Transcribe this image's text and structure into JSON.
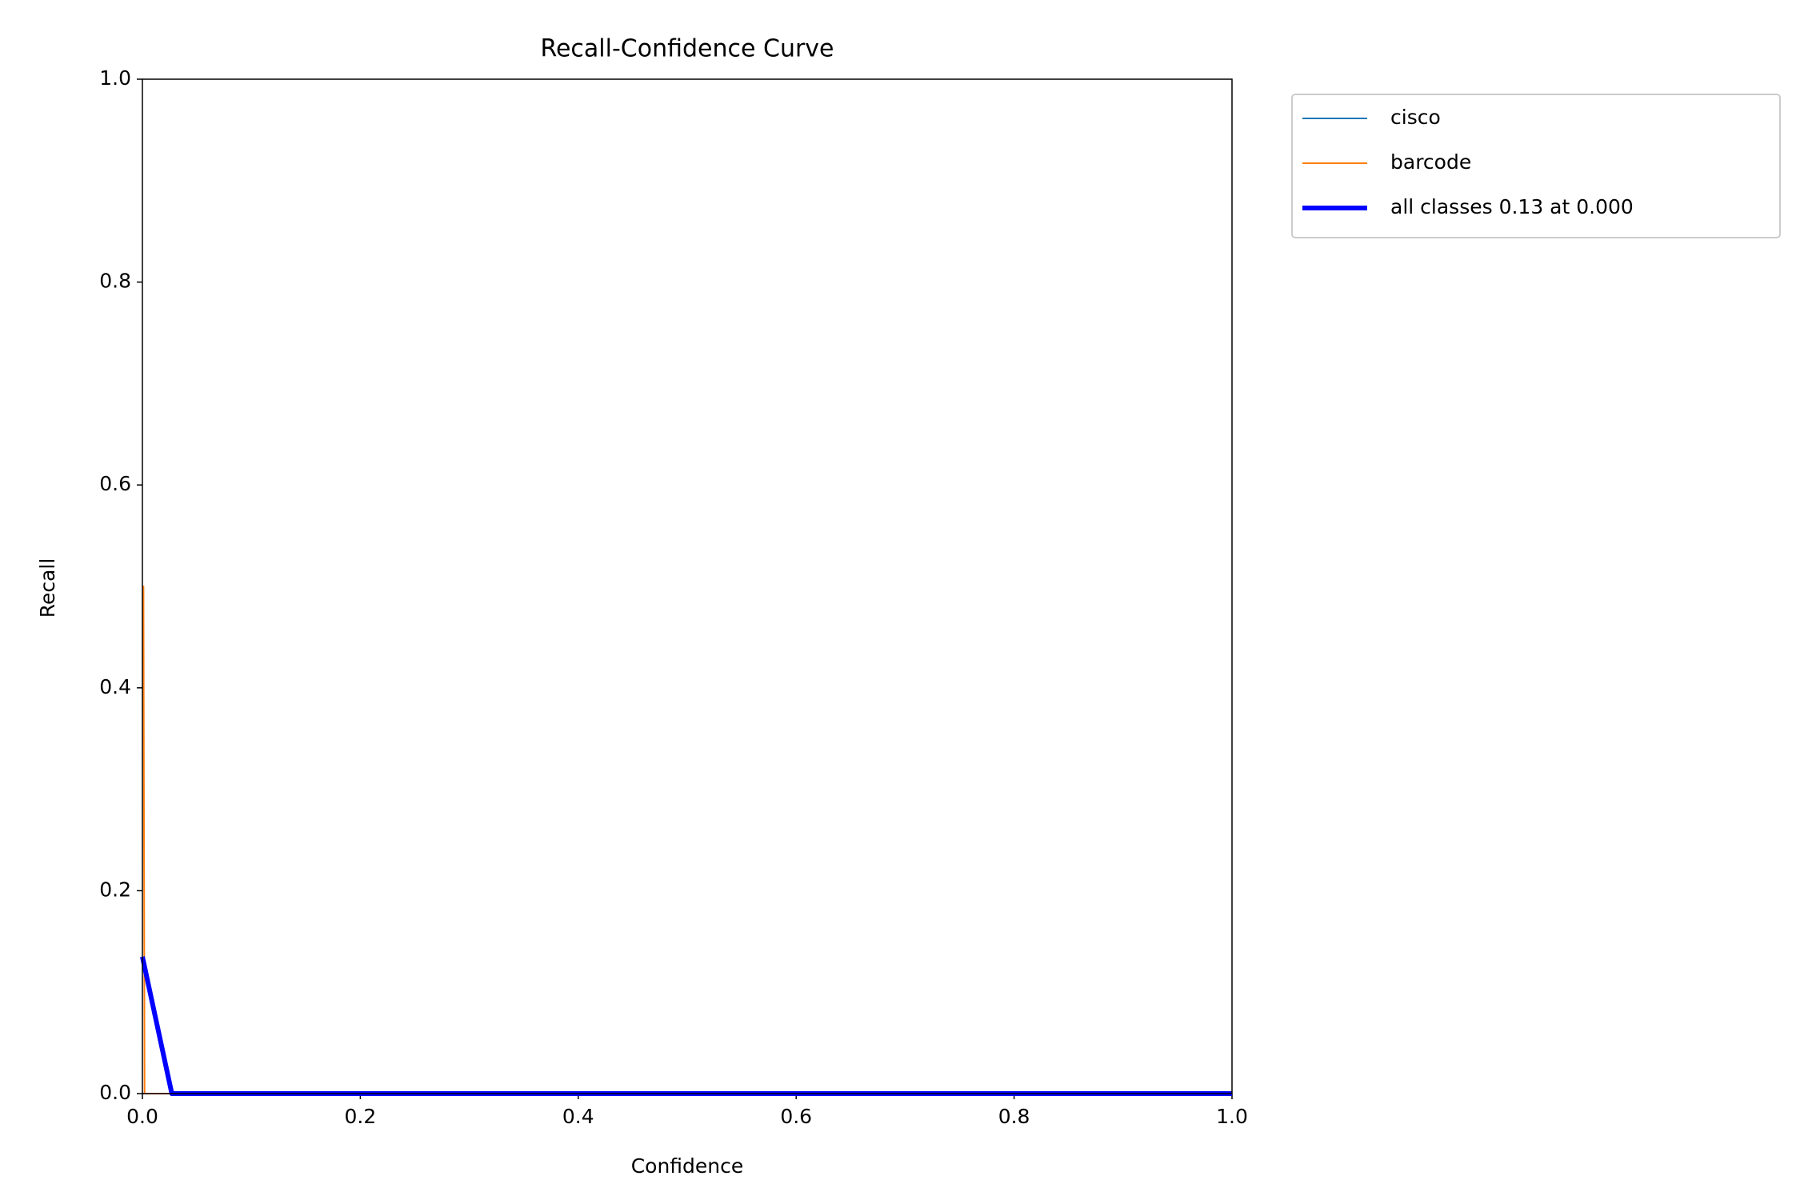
{
  "chart_data": {
    "type": "line",
    "title": "Recall-Confidence Curve",
    "x_label": "Confidence",
    "y_label": "Recall",
    "series": [
      {
        "name": "cisco",
        "color": "#1f77b4",
        "width": "thin",
        "x": [
          0,
          1
        ],
        "values": [
          0,
          0
        ]
      },
      {
        "name": "barcode",
        "color": "#ff7f0e",
        "width": "thin",
        "x": [
          0,
          0.001,
          0.002,
          1
        ],
        "values": [
          0.5,
          0.5,
          0,
          0
        ]
      },
      {
        "name": "all classes 0.13 at 0.000",
        "color": "#0000ff",
        "width": "thick",
        "x": [
          0,
          0.027,
          1
        ],
        "values": [
          0.135,
          0,
          0
        ]
      }
    ],
    "xlim": [
      0,
      1
    ],
    "ylim": [
      0,
      1
    ],
    "xticks": [
      {
        "value": 0,
        "label": "0.0"
      },
      0.2,
      0.4,
      0.6,
      0.8,
      {
        "value": 1,
        "label": "1.0"
      }
    ],
    "yticks": [
      {
        "value": 0,
        "label": "0.0"
      },
      0.2,
      0.4,
      0.6,
      0.8,
      {
        "value": 1,
        "label": "1.0"
      }
    ],
    "grid": false,
    "legend": "outside upper right"
  }
}
